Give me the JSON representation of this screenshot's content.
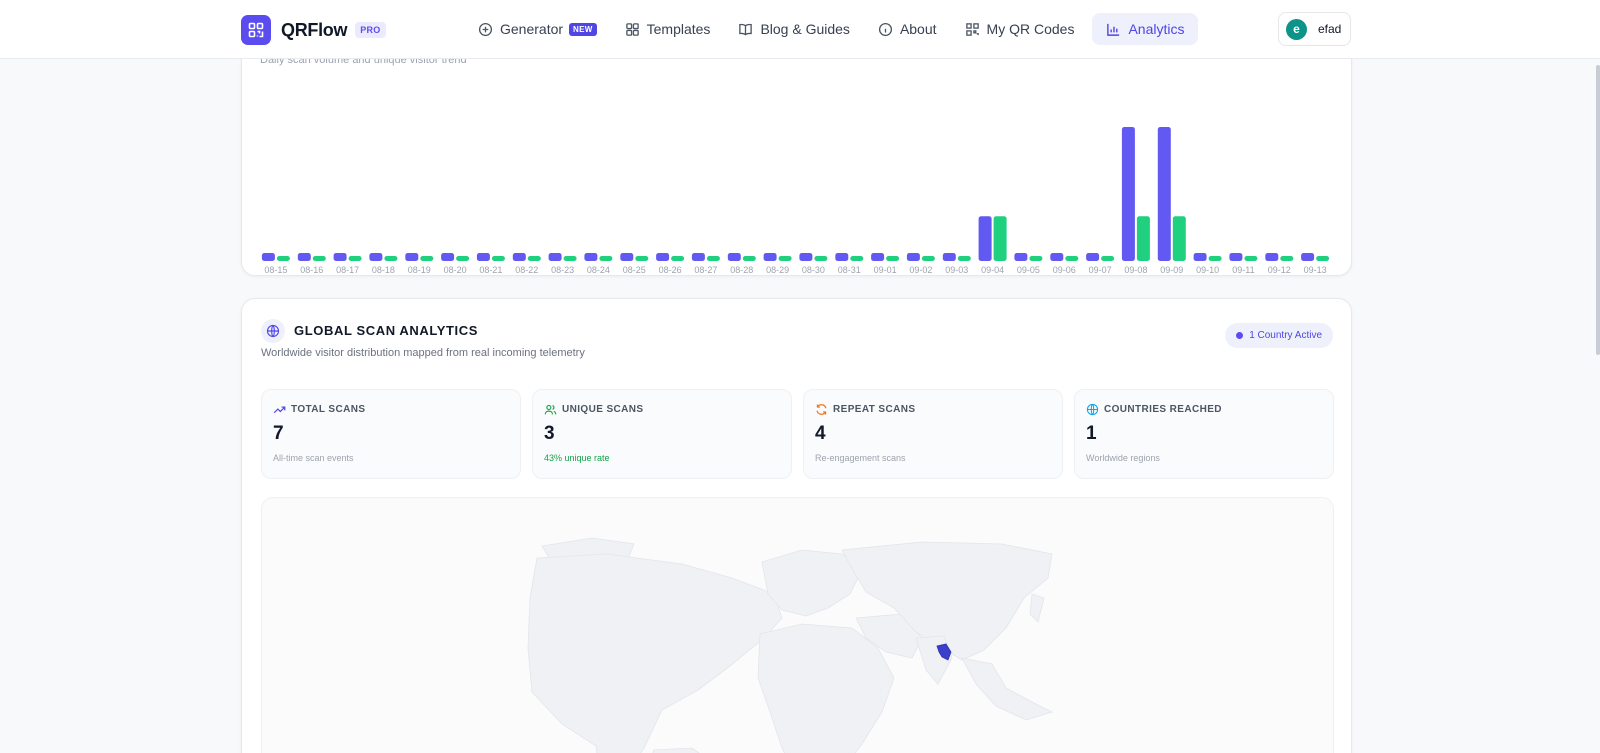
{
  "brand": {
    "name": "QRFlow",
    "badge": "PRO"
  },
  "nav": {
    "items": [
      {
        "label": "Generator",
        "icon": "plus-circle-icon",
        "badge": "NEW"
      },
      {
        "label": "Templates",
        "icon": "grid-icon"
      },
      {
        "label": "Blog & Guides",
        "icon": "book-icon"
      },
      {
        "label": "About",
        "icon": "info-icon"
      },
      {
        "label": "My QR Codes",
        "icon": "qr-icon"
      },
      {
        "label": "Analytics",
        "icon": "bar-chart-icon",
        "active": true
      }
    ]
  },
  "user": {
    "initial": "e",
    "name": "efad"
  },
  "trend": {
    "subtitle": "Daily scan volume and unique visitor trend"
  },
  "chart_data": {
    "type": "bar",
    "categories": [
      "08-15",
      "08-16",
      "08-17",
      "08-18",
      "08-19",
      "08-20",
      "08-21",
      "08-22",
      "08-23",
      "08-24",
      "08-25",
      "08-26",
      "08-27",
      "08-28",
      "08-29",
      "08-30",
      "08-31",
      "09-01",
      "09-02",
      "09-03",
      "09-04",
      "09-05",
      "09-06",
      "09-07",
      "09-08",
      "09-09",
      "09-10",
      "09-11",
      "09-12",
      "09-13"
    ],
    "series": [
      {
        "color": "#6259f2",
        "values": [
          0,
          0,
          0,
          0,
          0,
          0,
          0,
          0,
          0,
          0,
          0,
          0,
          0,
          0,
          0,
          0,
          0,
          0,
          0,
          0,
          1,
          0,
          0,
          0,
          3,
          3,
          0,
          0,
          0,
          0
        ]
      },
      {
        "color": "#1fd07f",
        "values": [
          0,
          0,
          0,
          0,
          0,
          0,
          0,
          0,
          0,
          0,
          0,
          0,
          0,
          0,
          0,
          0,
          0,
          0,
          0,
          0,
          1,
          0,
          0,
          0,
          1,
          1,
          0,
          0,
          0,
          0
        ]
      }
    ],
    "ylim": [
      0,
      3
    ]
  },
  "global": {
    "title": "GLOBAL SCAN ANALYTICS",
    "subtitle": "Worldwide visitor distribution mapped from real incoming telemetry",
    "active_label": "1 Country Active",
    "stats": [
      {
        "label": "TOTAL SCANS",
        "value": "7",
        "note": "All-time scan events",
        "icon": "trending-up-icon",
        "color": "#4f46e5"
      },
      {
        "label": "UNIQUE SCANS",
        "value": "3",
        "note": "43% unique rate",
        "icon": "users-icon",
        "color": "#16a34a"
      },
      {
        "label": "REPEAT SCANS",
        "value": "4",
        "note": "Re-engagement scans",
        "icon": "refresh-icon",
        "color": "#f97316"
      },
      {
        "label": "COUNTRIES REACHED",
        "value": "1",
        "note": "Worldwide regions",
        "icon": "globe-icon",
        "color": "#0ea5e9"
      }
    ]
  },
  "map": {
    "highlight_color": "#3b3fc9",
    "land_color": "#eff1f4",
    "highlighted_country": "Bangladesh"
  }
}
